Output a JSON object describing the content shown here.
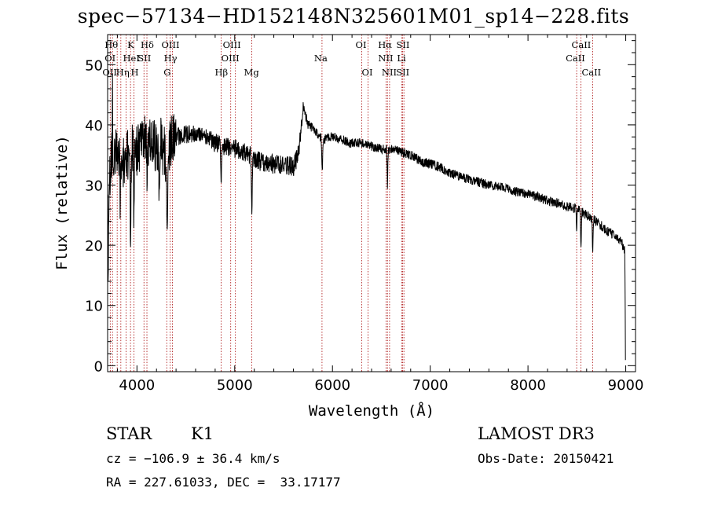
{
  "header": {
    "title": "spec−57134−HD152148N325601M01_sp14−228.fits"
  },
  "footer": {
    "class_label": "STAR",
    "subclass": "K1",
    "survey": "LAMOST DR3",
    "cz": "cz = −106.9 ± 36.4 km/s",
    "obs_date": "Obs-Date: 20150421",
    "coords": "RA = 227.61033, DEC =  33.17177"
  },
  "chart_data": {
    "type": "line",
    "xlabel": "Wavelength (Å)",
    "ylabel": "Flux (relative)",
    "xlim": [
      3700,
      9100
    ],
    "ylim": [
      -1,
      55
    ],
    "xticks": [
      4000,
      5000,
      6000,
      7000,
      8000,
      9000
    ],
    "yticks": [
      0,
      10,
      20,
      30,
      40,
      50
    ],
    "line_color": "#000000",
    "marker_color": "#b22222",
    "continuum": [
      [
        3700,
        14
      ],
      [
        3720,
        30
      ],
      [
        3750,
        36
      ],
      [
        3800,
        35
      ],
      [
        3850,
        33
      ],
      [
        3900,
        35
      ],
      [
        3950,
        36
      ],
      [
        4000,
        36
      ],
      [
        4050,
        37
      ],
      [
        4100,
        38
      ],
      [
        4150,
        37
      ],
      [
        4200,
        36
      ],
      [
        4250,
        37
      ],
      [
        4300,
        34
      ],
      [
        4350,
        37
      ],
      [
        4400,
        38
      ],
      [
        4500,
        38.5
      ],
      [
        4600,
        38.5
      ],
      [
        4700,
        38
      ],
      [
        4800,
        37
      ],
      [
        4900,
        36.5
      ],
      [
        5000,
        36
      ],
      [
        5100,
        35.5
      ],
      [
        5200,
        34.5
      ],
      [
        5300,
        33.5
      ],
      [
        5400,
        33.5
      ],
      [
        5500,
        33.5
      ],
      [
        5600,
        33
      ],
      [
        5650,
        35
      ],
      [
        5700,
        43
      ],
      [
        5750,
        40
      ],
      [
        5800,
        39.5
      ],
      [
        5850,
        38.5
      ],
      [
        5900,
        37.5
      ],
      [
        6000,
        38
      ],
      [
        6100,
        37.5
      ],
      [
        6200,
        37
      ],
      [
        6300,
        37
      ],
      [
        6400,
        36.5
      ],
      [
        6500,
        36
      ],
      [
        6600,
        36
      ],
      [
        6700,
        35.5
      ],
      [
        6800,
        35
      ],
      [
        6900,
        34
      ],
      [
        7000,
        33.5
      ],
      [
        7100,
        33
      ],
      [
        7200,
        32
      ],
      [
        7300,
        31.5
      ],
      [
        7400,
        31
      ],
      [
        7500,
        30.5
      ],
      [
        7600,
        30
      ],
      [
        7700,
        29.8
      ],
      [
        7800,
        29.3
      ],
      [
        7900,
        28.8
      ],
      [
        8000,
        28.5
      ],
      [
        8100,
        28
      ],
      [
        8200,
        27.5
      ],
      [
        8300,
        27
      ],
      [
        8400,
        26.5
      ],
      [
        8500,
        26
      ],
      [
        8600,
        25
      ],
      [
        8700,
        24
      ],
      [
        8800,
        22.5
      ],
      [
        8900,
        21.5
      ],
      [
        8960,
        20.5
      ],
      [
        8990,
        19
      ],
      [
        9000,
        1
      ]
    ],
    "absorption": [
      {
        "wl": 3934,
        "depth": 12,
        "width": 6
      },
      {
        "wl": 3969,
        "depth": 12,
        "width": 6
      },
      {
        "wl": 3830,
        "depth": 7,
        "width": 5
      },
      {
        "wl": 4101,
        "depth": 6,
        "width": 6
      },
      {
        "wl": 4227,
        "depth": 6,
        "width": 5
      },
      {
        "wl": 4308,
        "depth": 14,
        "width": 6
      },
      {
        "wl": 4861,
        "depth": 6,
        "width": 6
      },
      {
        "wl": 5175,
        "depth": 8,
        "width": 6
      },
      {
        "wl": 5895,
        "depth": 5,
        "width": 6
      },
      {
        "wl": 6563,
        "depth": 6,
        "width": 5
      },
      {
        "wl": 8498,
        "depth": 4,
        "width": 5
      },
      {
        "wl": 8542,
        "depth": 6,
        "width": 5
      },
      {
        "wl": 8662,
        "depth": 6,
        "width": 5
      }
    ],
    "lines": [
      {
        "label": "OII",
        "wl": 3727,
        "row": 2,
        "dx": -10
      },
      {
        "label": "Hθ",
        "wl": 3798,
        "row": 0,
        "dx": -16
      },
      {
        "label": "OI",
        "wl": 3750,
        "row": 1,
        "dx": -10
      },
      {
        "label": "Hη",
        "wl": 3835,
        "row": 2,
        "dx": -6
      },
      {
        "label": "K",
        "wl": 3934,
        "row": 0,
        "dx": -4
      },
      {
        "label": "HeI",
        "wl": 3889,
        "row": 1,
        "dx": -4
      },
      {
        "label": "H",
        "wl": 3969,
        "row": 2,
        "dx": -4
      },
      {
        "label": "SII",
        "wl": 4072,
        "row": 1,
        "dx": -8
      },
      {
        "label": "Hδ",
        "wl": 4102,
        "row": 0,
        "dx": -8
      },
      {
        "label": "OIII",
        "wl": 4363,
        "row": 0,
        "dx": -14
      },
      {
        "label": "Hγ",
        "wl": 4340,
        "row": 1,
        "dx": -8
      },
      {
        "label": "G",
        "wl": 4305,
        "row": 2,
        "dx": -4
      },
      {
        "label": "Hβ",
        "wl": 4861,
        "row": 2,
        "dx": -8
      },
      {
        "label": "OIII",
        "wl": 4959,
        "row": 0,
        "dx": -10
      },
      {
        "label": "OIII",
        "wl": 5007,
        "row": 1,
        "dx": -18
      },
      {
        "label": "Mg",
        "wl": 5175,
        "row": 2,
        "dx": -10
      },
      {
        "label": "Na",
        "wl": 5893,
        "row": 1,
        "dx": -10
      },
      {
        "label": "OI",
        "wl": 6300,
        "row": 0,
        "dx": -8
      },
      {
        "label": "OI",
        "wl": 6364,
        "row": 2,
        "dx": -8
      },
      {
        "label": "Hα",
        "wl": 6563,
        "row": 0,
        "dx": -12
      },
      {
        "label": "NII",
        "wl": 6548,
        "row": 1,
        "dx": -10
      },
      {
        "label": "NII",
        "wl": 6584,
        "row": 2,
        "dx": -10
      },
      {
        "label": "SII",
        "wl": 6717,
        "row": 0,
        "dx": -8
      },
      {
        "label": "Li",
        "wl": 6708,
        "row": 1,
        "dx": -6
      },
      {
        "label": "SII",
        "wl": 6731,
        "row": 2,
        "dx": -10
      },
      {
        "label": "CaII",
        "wl": 8498,
        "row": 1,
        "dx": -14
      },
      {
        "label": "CaII",
        "wl": 8542,
        "row": 0,
        "dx": -12
      },
      {
        "label": "CaII",
        "wl": 8662,
        "row": 2,
        "dx": -14
      }
    ]
  }
}
